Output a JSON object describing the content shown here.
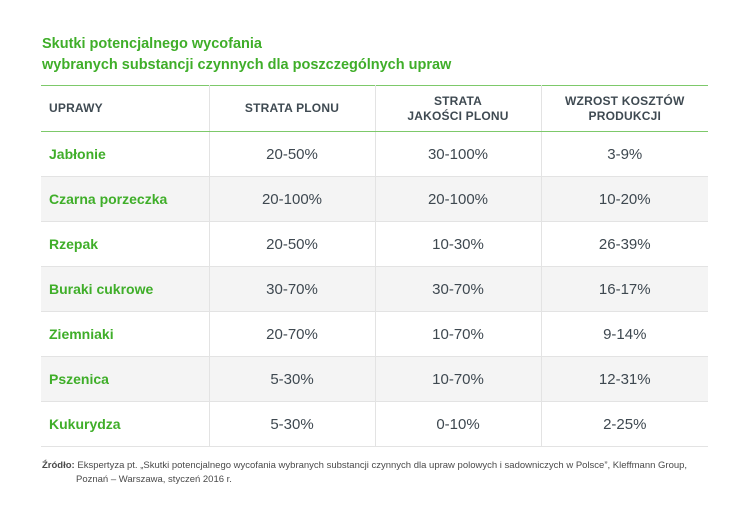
{
  "title": {
    "line1": "Skutki potencjalnego wycofania",
    "line2": "wybranych substancji czynnych dla poszczególnych upraw"
  },
  "table": {
    "headers": {
      "crop": "UPRAWY",
      "yield_loss": "STRATA PLONU",
      "quality_loss_line1": "STRATA",
      "quality_loss_line2": "JAKOŚCI PLONU",
      "cost_increase_line1": "WZROST KOSZTÓW",
      "cost_increase_line2": "PRODUKCJI"
    },
    "rows": [
      {
        "crop": "Jabłonie",
        "yield_loss": "20-50%",
        "quality_loss": "30-100%",
        "cost_increase": "3-9%"
      },
      {
        "crop": "Czarna porzeczka",
        "yield_loss": "20-100%",
        "quality_loss": "20-100%",
        "cost_increase": "10-20%"
      },
      {
        "crop": "Rzepak",
        "yield_loss": "20-50%",
        "quality_loss": "10-30%",
        "cost_increase": "26-39%"
      },
      {
        "crop": "Buraki cukrowe",
        "yield_loss": "30-70%",
        "quality_loss": "30-70%",
        "cost_increase": "16-17%"
      },
      {
        "crop": "Ziemniaki",
        "yield_loss": "20-70%",
        "quality_loss": "10-70%",
        "cost_increase": "9-14%"
      },
      {
        "crop": "Pszenica",
        "yield_loss": "5-30%",
        "quality_loss": "10-70%",
        "cost_increase": "12-31%"
      },
      {
        "crop": "Kukurydza",
        "yield_loss": "5-30%",
        "quality_loss": "0-10%",
        "cost_increase": "2-25%"
      }
    ]
  },
  "source": {
    "label": "Źródło:",
    "line1": "Ekspertyza pt. „Skutki potencjalnego wycofania wybranych substancji czynnych dla upraw polowych i sadowniczych w Polsce”, Kleffmann Group,",
    "line2": "Poznań – Warszawa, styczeń 2016 r."
  },
  "colors": {
    "accent_green": "#3fae29",
    "header_border_green": "#7dc96a",
    "alt_row_bg": "#f4f4f4",
    "text": "#3e4850"
  }
}
